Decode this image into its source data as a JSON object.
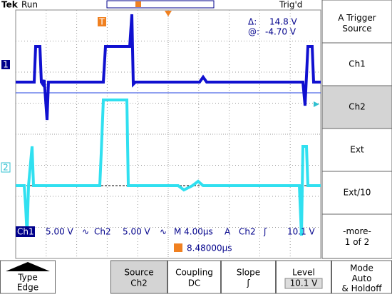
{
  "header": {
    "brand": "Tek",
    "state": "Run",
    "trigger_status": "Trig'd"
  },
  "readout": {
    "delta_label": "Δ:",
    "delta": "14.8 V",
    "at_label": "@:",
    "at": "-4.70 V"
  },
  "markers": {
    "ch1": "1",
    "ch2": "2",
    "trigger": "T"
  },
  "status": {
    "ch1": "Ch1",
    "ch1_scale": "5.00 V",
    "ch1_coupling": "∿",
    "ch2": "Ch2",
    "ch2_scale": "5.00 V",
    "ch2_coupling": "∿",
    "timebase": "M 4.00µs",
    "trigger": "A",
    "trigger_source": "Ch2",
    "trigger_slope": "ʃ",
    "trigger_level": "10.1 V",
    "trigger_position": "8.48000µs"
  },
  "side_menu": {
    "title": "A Trigger Source",
    "items": [
      "Ch1",
      "Ch2",
      "Ext",
      "Ext/10",
      "-more- 1 of 2"
    ],
    "selected": "Ch2"
  },
  "bottom_menu": [
    {
      "label": "Type",
      "value": "Edge"
    },
    {
      "label": "Source",
      "value": "Ch2"
    },
    {
      "label": "Coupling",
      "value": "DC"
    },
    {
      "label": "Slope",
      "value": "ʃ"
    },
    {
      "label": "Level",
      "value": "10.1 V"
    },
    {
      "label": "Mode",
      "value": "Auto & Holdoff"
    }
  ]
}
